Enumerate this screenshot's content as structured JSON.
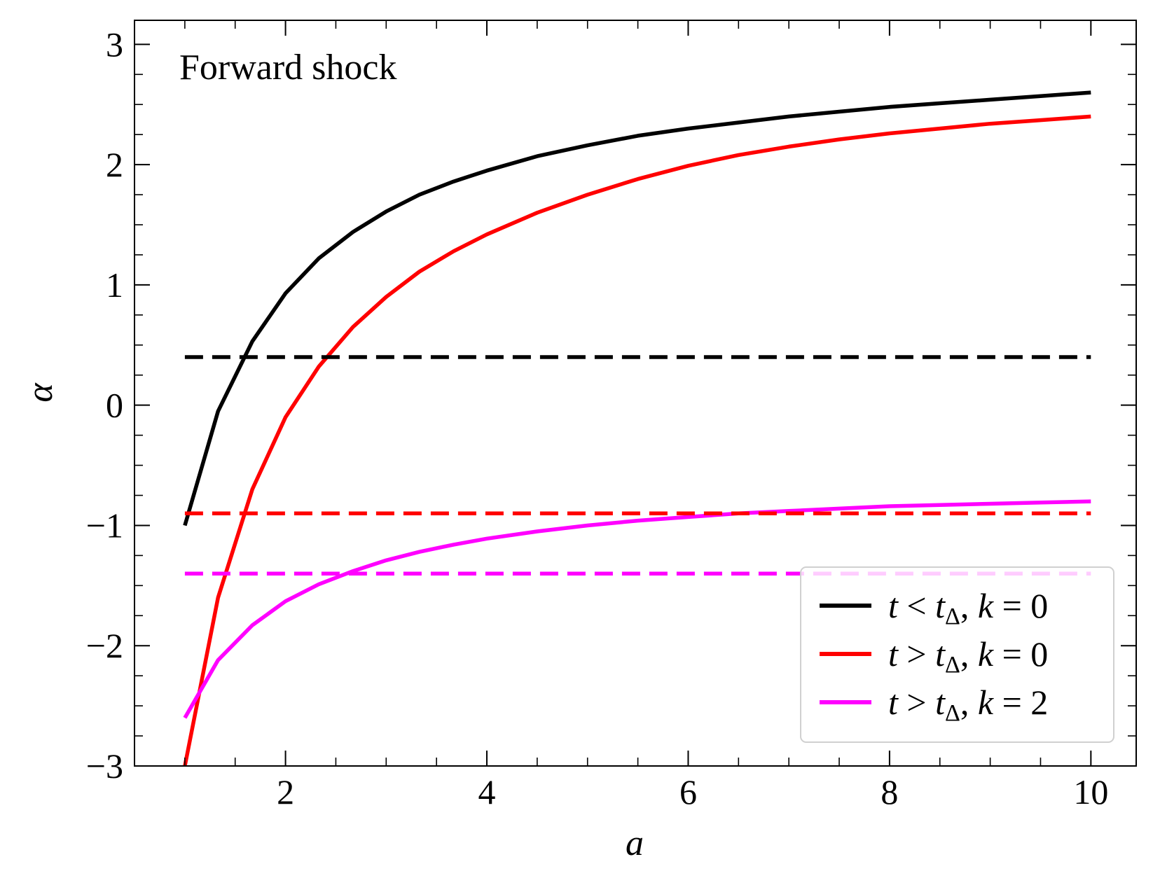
{
  "chart_data": {
    "type": "line",
    "title": "",
    "annotation": "Forward shock",
    "xlabel": "a",
    "ylabel": "α",
    "xlim": [
      0.5,
      10.45
    ],
    "ylim": [
      -3,
      3.2
    ],
    "xticks": [
      2,
      4,
      6,
      8,
      10
    ],
    "xtick_labels": [
      "2",
      "4",
      "6",
      "8",
      "10"
    ],
    "yticks": [
      -3,
      -2,
      -1,
      0,
      1,
      2,
      3
    ],
    "ytick_labels": [
      "−3",
      "−2",
      "−1",
      "0",
      "1",
      "2",
      "3"
    ],
    "grid": false,
    "legend_position": "bottom-right",
    "series": [
      {
        "key": "black",
        "color": "#000000",
        "style": "solid",
        "legend": {
          "var": "t",
          "op": "<",
          "sub": "Δ",
          "k": "0"
        },
        "x": [
          1.0,
          1.33,
          1.67,
          2.0,
          2.33,
          2.67,
          3.0,
          3.33,
          3.67,
          4.0,
          4.5,
          5.0,
          5.5,
          6.0,
          6.5,
          7.0,
          7.5,
          8.0,
          8.5,
          9.0,
          9.5,
          10.0
        ],
        "y": [
          -1.0,
          -0.05,
          0.53,
          0.93,
          1.22,
          1.44,
          1.61,
          1.75,
          1.86,
          1.95,
          2.07,
          2.16,
          2.24,
          2.3,
          2.35,
          2.4,
          2.44,
          2.48,
          2.51,
          2.54,
          2.57,
          2.6
        ]
      },
      {
        "key": "red",
        "color": "#ff0000",
        "style": "solid",
        "legend": {
          "var": "t",
          "op": ">",
          "sub": "Δ",
          "k": "0"
        },
        "x": [
          1.0,
          1.33,
          1.67,
          2.0,
          2.33,
          2.67,
          3.0,
          3.33,
          3.67,
          4.0,
          4.5,
          5.0,
          5.5,
          6.0,
          6.5,
          7.0,
          7.5,
          8.0,
          8.5,
          9.0,
          9.5,
          10.0
        ],
        "y": [
          -3.0,
          -1.6,
          -0.7,
          -0.1,
          0.32,
          0.65,
          0.9,
          1.11,
          1.28,
          1.42,
          1.6,
          1.75,
          1.88,
          1.99,
          2.08,
          2.15,
          2.21,
          2.26,
          2.3,
          2.34,
          2.37,
          2.4
        ]
      },
      {
        "key": "magenta",
        "color": "#ff00ff",
        "style": "solid",
        "legend": {
          "var": "t",
          "op": ">",
          "sub": "Δ",
          "k": "2"
        },
        "x": [
          1.0,
          1.33,
          1.67,
          2.0,
          2.33,
          2.67,
          3.0,
          3.33,
          3.67,
          4.0,
          4.5,
          5.0,
          5.5,
          6.0,
          6.5,
          7.0,
          7.5,
          8.0,
          8.5,
          9.0,
          9.5,
          10.0
        ],
        "y": [
          -2.6,
          -2.12,
          -1.83,
          -1.63,
          -1.49,
          -1.38,
          -1.29,
          -1.22,
          -1.16,
          -1.11,
          -1.05,
          -1.0,
          -0.96,
          -0.93,
          -0.9,
          -0.88,
          -0.86,
          -0.84,
          -0.83,
          -0.82,
          -0.81,
          -0.8
        ]
      },
      {
        "key": "black-dashed",
        "color": "#000000",
        "style": "dashed",
        "x": [
          1.0,
          10.0
        ],
        "y": [
          0.4,
          0.4
        ]
      },
      {
        "key": "red-dashed",
        "color": "#ff0000",
        "style": "dashed",
        "x": [
          1.0,
          10.0
        ],
        "y": [
          -0.9,
          -0.9
        ]
      },
      {
        "key": "magenta-dashed",
        "color": "#ff00ff",
        "style": "dashed",
        "x": [
          1.0,
          10.0
        ],
        "y": [
          -1.4,
          -1.4
        ]
      }
    ]
  }
}
